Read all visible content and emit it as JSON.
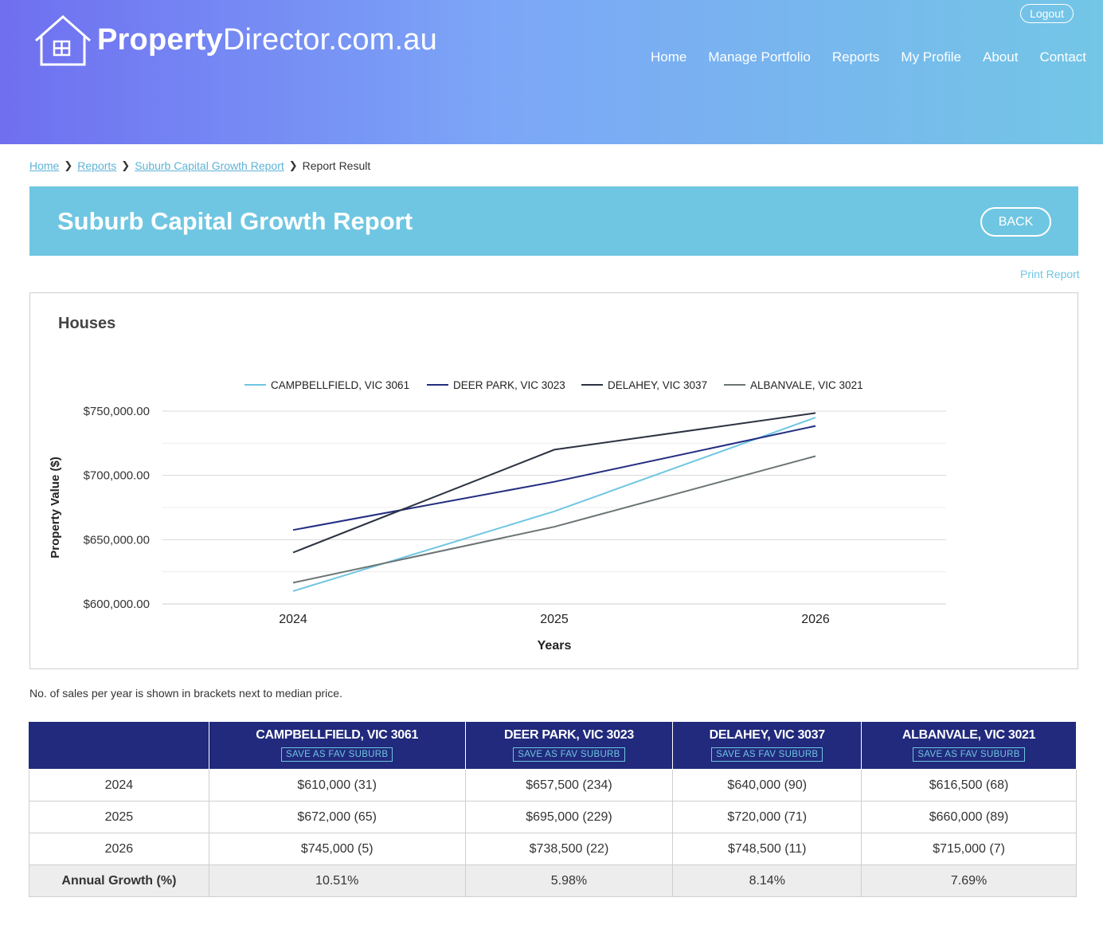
{
  "header": {
    "logo_bold": "Property",
    "logo_rest": "Director.com.au",
    "logout_label": "Logout",
    "nav": [
      "Home",
      "Manage Portfolio",
      "Reports",
      "My Profile",
      "About",
      "Contact"
    ]
  },
  "breadcrumb": {
    "items": [
      "Home",
      "Reports",
      "Suburb Capital Growth Report"
    ],
    "current": "Report Result"
  },
  "page": {
    "title": "Suburb Capital Growth Report",
    "back_label": "BACK",
    "print_label": "Print Report",
    "note": "No. of sales per year is shown in brackets next to median price."
  },
  "chart_data": {
    "type": "line",
    "title": "Houses",
    "xlabel": "Years",
    "ylabel": "Property Value ($)",
    "categories": [
      "2024",
      "2025",
      "2026"
    ],
    "y_ticks": [
      "$600,000.00",
      "$650,000.00",
      "$700,000.00",
      "$750,000.00"
    ],
    "ylim": [
      600000,
      750000
    ],
    "grid": true,
    "legend_position": "top",
    "series": [
      {
        "name": "CAMPBELLFIELD, VIC 3061",
        "color": "#6fc6e2",
        "values": [
          610000,
          672000,
          745000
        ]
      },
      {
        "name": "DEER PARK, VIC 3023",
        "color": "#232d80",
        "values": [
          657500,
          695000,
          738500
        ]
      },
      {
        "name": "DELAHEY, VIC 3037",
        "color": "#2b3240",
        "values": [
          640000,
          720000,
          748500
        ]
      },
      {
        "name": "ALBANVALE, VIC 3021",
        "color": "#6b7475",
        "values": [
          616500,
          660000,
          715000
        ]
      }
    ]
  },
  "table": {
    "fav_label": "SAVE AS FAV SUBURB",
    "columns": [
      "CAMPBELLFIELD, VIC 3061",
      "DEER PARK, VIC 3023",
      "DELAHEY, VIC 3037",
      "ALBANVALE, VIC 3021"
    ],
    "rows": [
      {
        "label": "2024",
        "cells": [
          "$610,000 (31)",
          "$657,500 (234)",
          "$640,000 (90)",
          "$616,500 (68)"
        ]
      },
      {
        "label": "2025",
        "cells": [
          "$672,000 (65)",
          "$695,000 (229)",
          "$720,000 (71)",
          "$660,000 (89)"
        ]
      },
      {
        "label": "2026",
        "cells": [
          "$745,000 (5)",
          "$738,500 (22)",
          "$748,500 (11)",
          "$715,000 (7)"
        ]
      }
    ],
    "growth": {
      "label": "Annual Growth (%)",
      "cells": [
        "10.51%",
        "5.98%",
        "8.14%",
        "7.69%"
      ]
    }
  }
}
